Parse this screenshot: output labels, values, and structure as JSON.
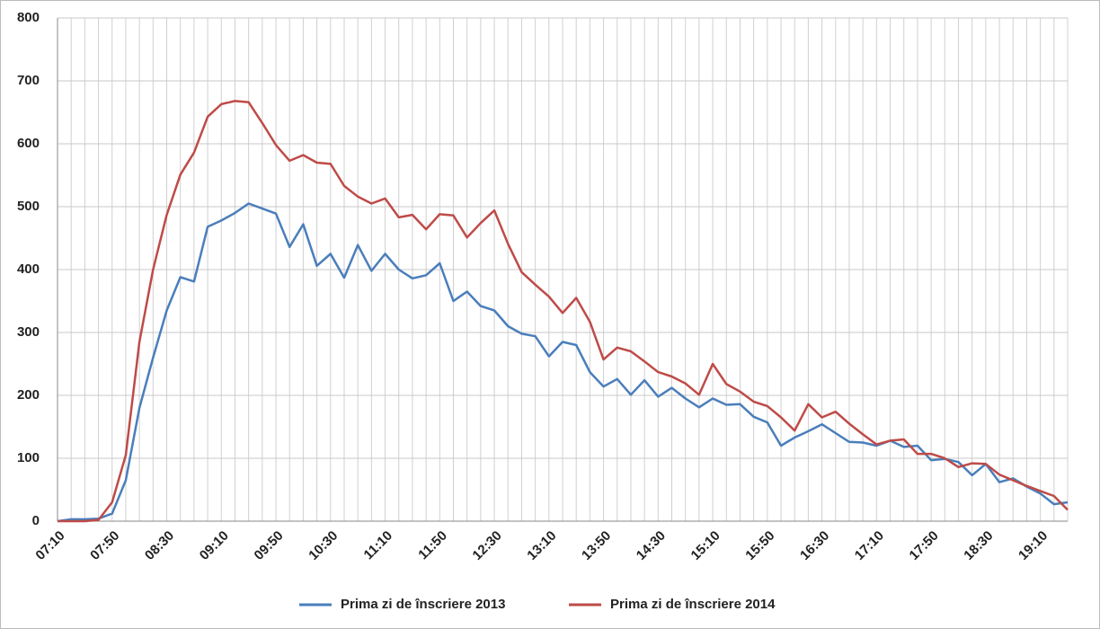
{
  "chart_data": {
    "type": "line",
    "categories": [
      "07:10",
      null,
      null,
      null,
      "07:50",
      null,
      null,
      null,
      "08:30",
      null,
      null,
      null,
      "09:10",
      null,
      null,
      null,
      "09:50",
      null,
      null,
      null,
      "10:30",
      null,
      null,
      null,
      "11:10",
      null,
      null,
      null,
      "11:50",
      null,
      null,
      null,
      "12:30",
      null,
      null,
      null,
      "13:10",
      null,
      null,
      null,
      "13:50",
      null,
      null,
      null,
      "14:30",
      null,
      null,
      null,
      "15:10",
      null,
      null,
      null,
      "15:50",
      null,
      null,
      null,
      "16:30",
      null,
      null,
      null,
      "17:10",
      null,
      null,
      null,
      "17:50",
      null,
      null,
      null,
      "18:30",
      null,
      null,
      null,
      "19:10",
      null,
      null
    ],
    "series": [
      {
        "name": "Prima zi de înscriere 2013",
        "color": "#4a7ebb",
        "values": [
          0,
          3,
          3,
          4,
          12,
          65,
          180,
          260,
          335,
          388,
          381,
          468,
          478,
          490,
          505,
          497,
          489,
          436,
          472,
          406,
          425,
          387,
          439,
          398,
          425,
          400,
          386,
          391,
          410,
          350,
          365,
          342,
          335,
          310,
          298,
          294,
          262,
          285,
          280,
          237,
          214,
          226,
          201,
          224,
          198,
          212,
          195,
          181,
          195,
          185,
          186,
          166,
          157,
          120,
          133,
          143,
          154,
          140,
          126,
          125,
          120,
          128,
          118,
          120,
          97,
          99,
          94,
          73,
          91,
          62,
          68,
          55,
          44,
          27,
          30
        ]
      },
      {
        "name": "Prima zi de înscriere 2014",
        "color": "#be4b48",
        "values": [
          0,
          0,
          0,
          2,
          30,
          105,
          285,
          400,
          487,
          551,
          586,
          643,
          663,
          668,
          666,
          633,
          598,
          573,
          582,
          570,
          568,
          533,
          516,
          505,
          513,
          483,
          487,
          464,
          488,
          486,
          451,
          474,
          494,
          441,
          396,
          376,
          357,
          331,
          355,
          317,
          257,
          276,
          270,
          254,
          237,
          230,
          219,
          201,
          250,
          218,
          206,
          190,
          183,
          165,
          144,
          186,
          165,
          174,
          155,
          138,
          122,
          128,
          130,
          107,
          107,
          100,
          86,
          92,
          91,
          74,
          65,
          56,
          48,
          40,
          18
        ]
      }
    ],
    "ylim": [
      0,
      800
    ],
    "yticks": [
      0,
      100,
      200,
      300,
      400,
      500,
      600,
      700,
      800
    ],
    "grid": true,
    "legend": "bottom"
  }
}
